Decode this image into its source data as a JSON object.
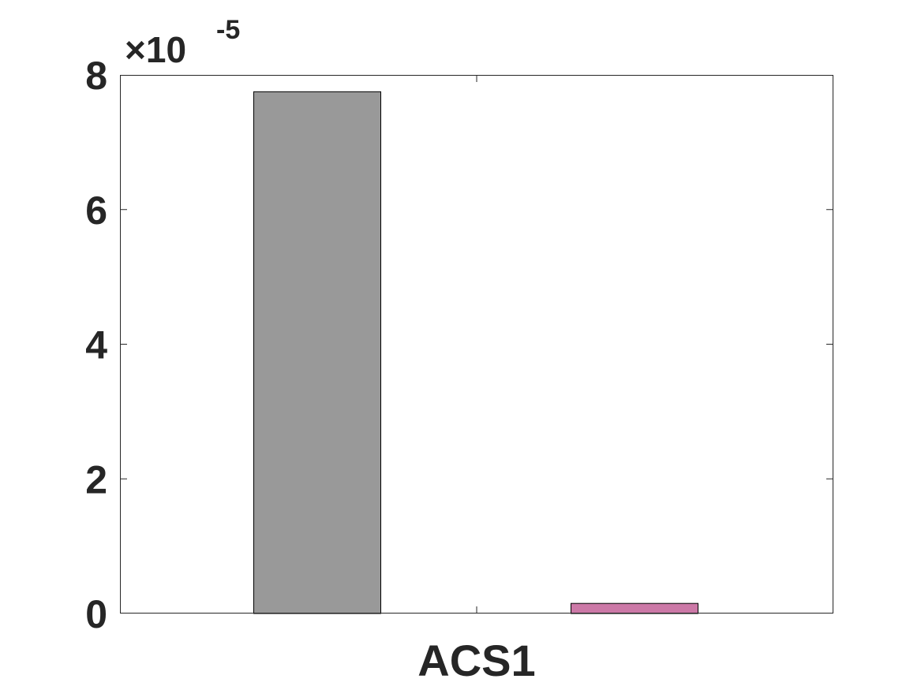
{
  "chart_data": {
    "type": "bar",
    "categories": [
      "ACS1"
    ],
    "series": [
      {
        "values": [
          7.75e-05
        ],
        "color": "#999999"
      },
      {
        "values": [
          1.5e-06
        ],
        "color": "#cc79a7"
      }
    ],
    "ylim": [
      0,
      8e-05
    ],
    "yticks": [
      0,
      2,
      4,
      6,
      8
    ],
    "ytick_labels": [
      "0",
      "2",
      "4",
      "6",
      "8"
    ],
    "y_exponent_label": {
      "base": "×10",
      "exponent": "-5"
    },
    "title": "",
    "xlabel": "",
    "ylabel": "",
    "grid": false,
    "box": true
  }
}
